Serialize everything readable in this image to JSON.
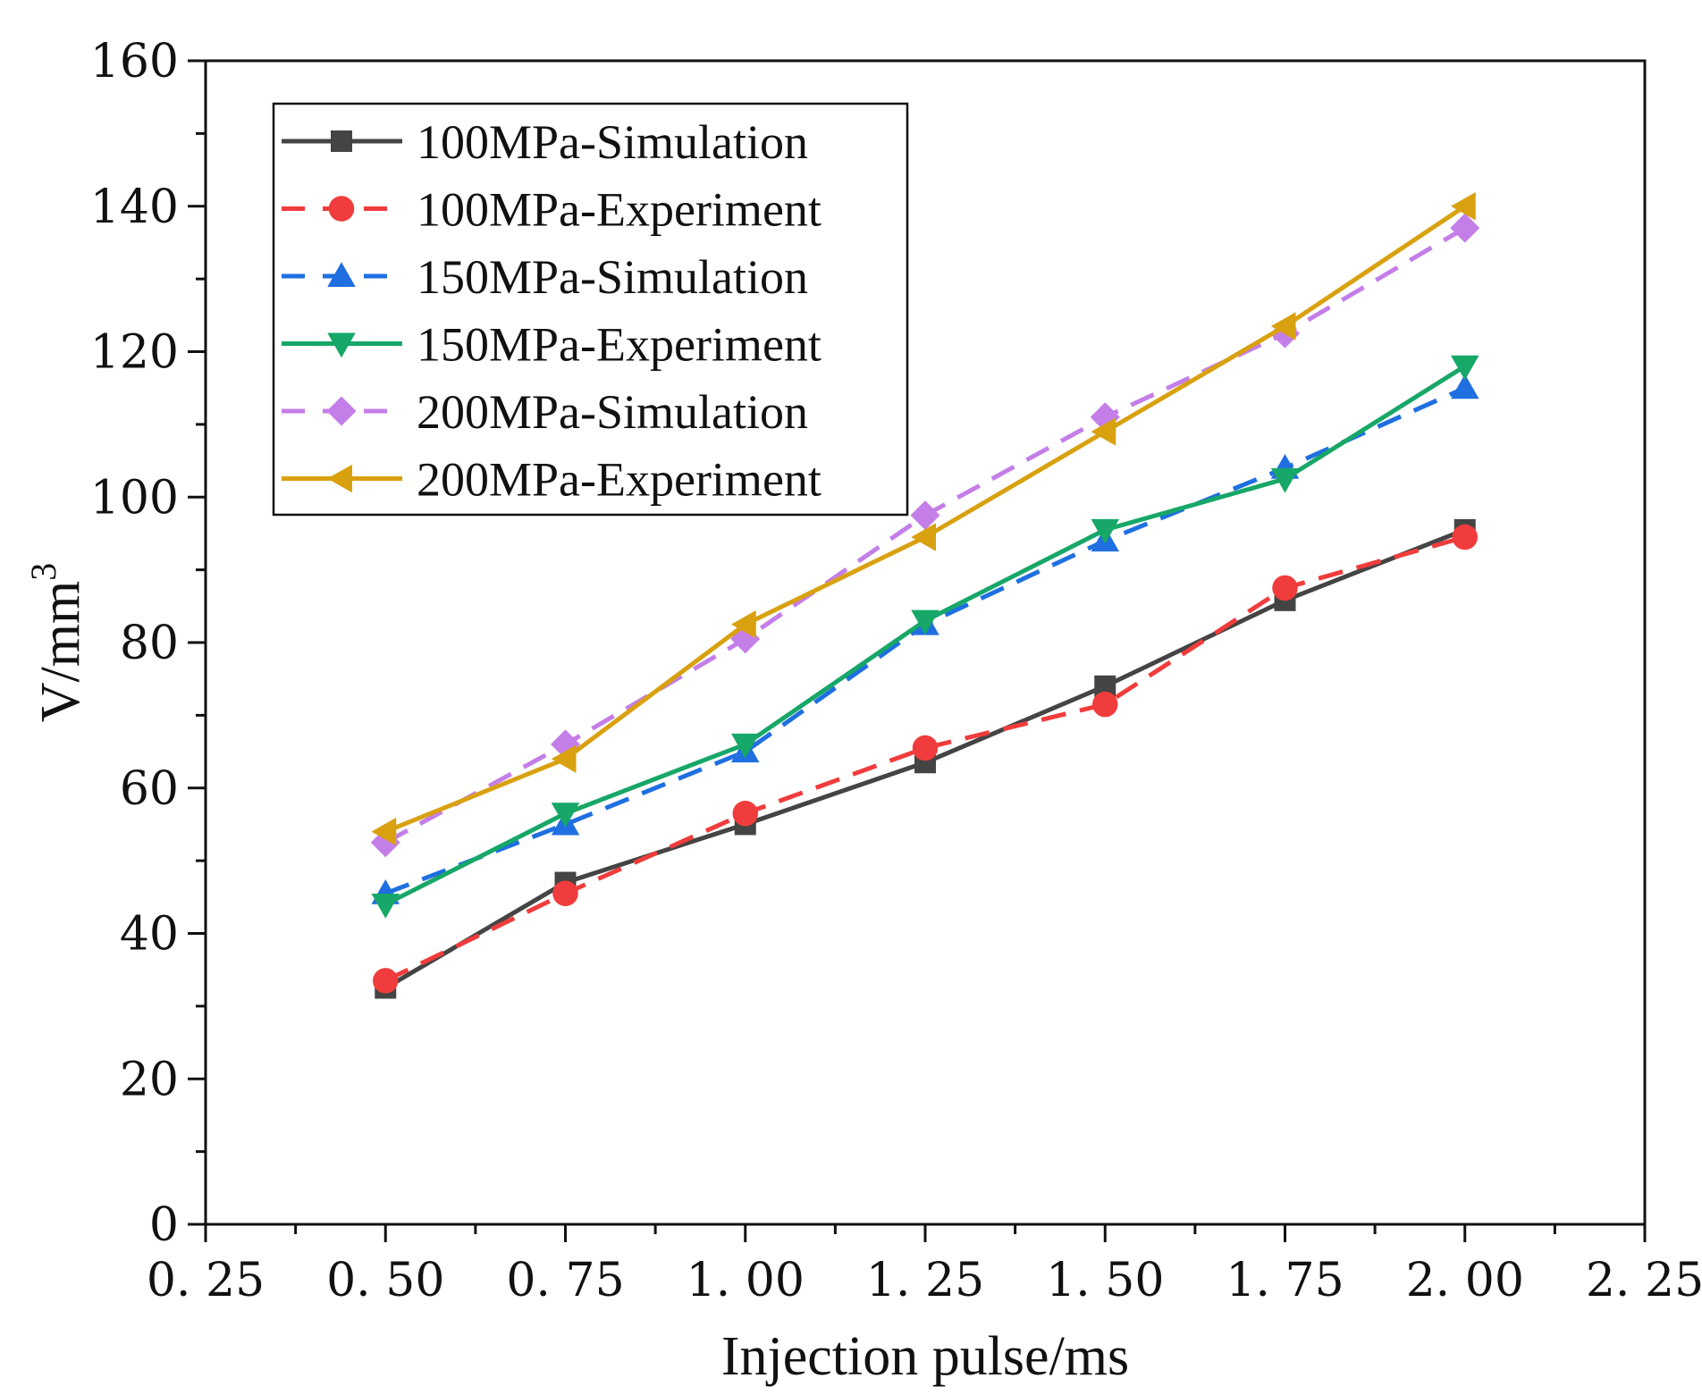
{
  "chart_data": {
    "type": "line",
    "title": "",
    "xlabel": "Injection pulse/ms",
    "ylabel": "V/mm",
    "ylabel_superscript": "3",
    "xlim": [
      0.25,
      2.25
    ],
    "ylim": [
      0,
      160
    ],
    "x_ticks": [
      "0.25",
      "0.50",
      "0.75",
      "1.00",
      "1.25",
      "1.50",
      "1.75",
      "2.00",
      "2.25"
    ],
    "y_ticks": [
      "0",
      "20",
      "40",
      "60",
      "80",
      "100",
      "120",
      "140",
      "160"
    ],
    "grid": false,
    "legend_position": "top-left",
    "x": [
      0.5,
      0.75,
      1.0,
      1.25,
      1.5,
      1.75,
      2.0
    ],
    "series": [
      {
        "name": "100MPa-Simulation",
        "values": [
          32.5,
          47,
          55,
          63.5,
          74,
          85.8,
          95.5
        ],
        "color": "#444444",
        "dash": "solid",
        "marker": "square"
      },
      {
        "name": "100MPa-Experiment",
        "values": [
          33.5,
          45.5,
          56.5,
          65.5,
          71.5,
          87.5,
          94.5
        ],
        "color": "#f03c3c",
        "dash": "dashed",
        "marker": "circle"
      },
      {
        "name": "150MPa-Simulation",
        "values": [
          45.5,
          55,
          65,
          82.5,
          94,
          104,
          115
        ],
        "color": "#1f6fe0",
        "dash": "dashed",
        "marker": "triangle-up"
      },
      {
        "name": "150MPa-Experiment",
        "values": [
          44,
          56.5,
          66,
          83,
          95.5,
          102.5,
          118
        ],
        "color": "#17a768",
        "dash": "solid",
        "marker": "triangle-down"
      },
      {
        "name": "200MPa-Simulation",
        "values": [
          52.5,
          66,
          80.5,
          97.5,
          111,
          122.5,
          137
        ],
        "color": "#c47ee8",
        "dash": "dashed",
        "marker": "diamond"
      },
      {
        "name": "200MPa-Experiment",
        "values": [
          54,
          64,
          82.5,
          94.5,
          109,
          123.5,
          140
        ],
        "color": "#d9a110",
        "dash": "solid",
        "marker": "triangle-left"
      }
    ]
  }
}
